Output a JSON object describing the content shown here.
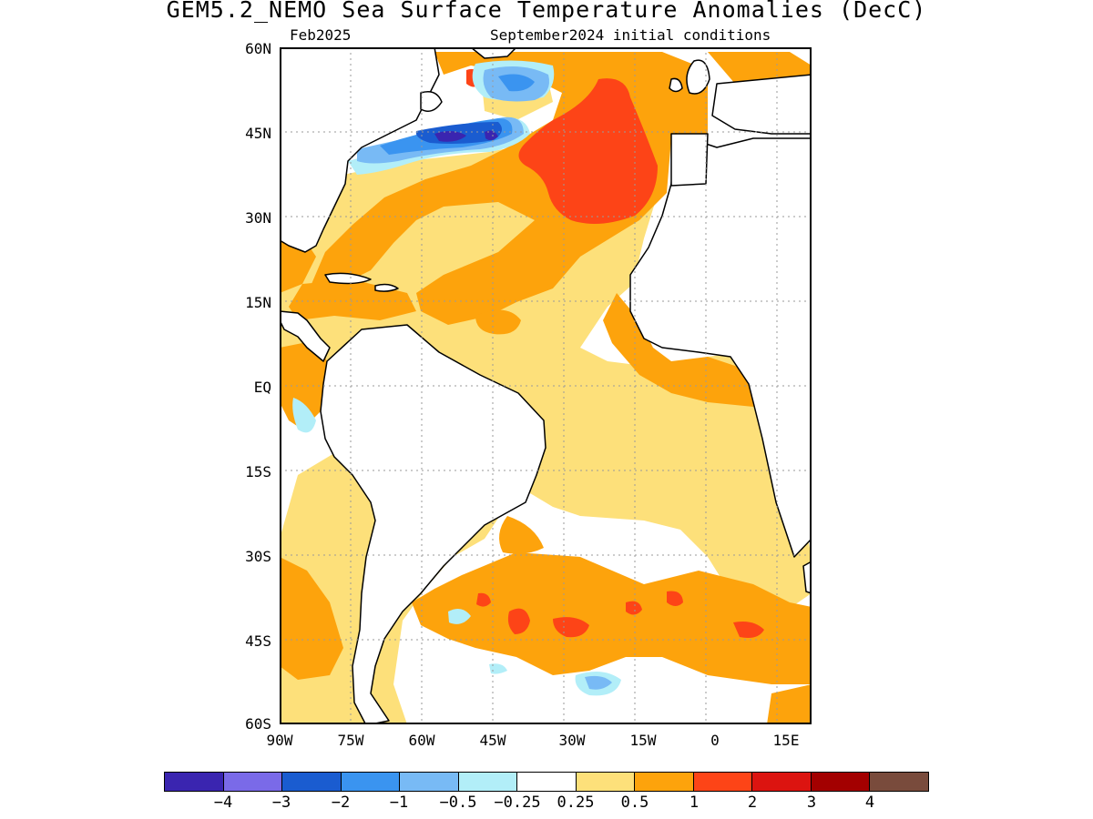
{
  "title": "GEM5.2_NEMO Sea Surface Temperature Anomalies (DecC)",
  "subtitle_left": "Feb2025",
  "subtitle_right": "September2024 initial conditions",
  "lat_labels": [
    "60N",
    "45N",
    "30N",
    "15N",
    "EQ",
    "15S",
    "30S",
    "45S",
    "60S"
  ],
  "lon_labels": [
    "90W",
    "75W",
    "60W",
    "45W",
    "30W",
    "15W",
    "0",
    "15E"
  ],
  "colorbar": {
    "colors": [
      "#3a25b0",
      "#7a6ae8",
      "#1a5cd0",
      "#3a94f0",
      "#78baf5",
      "#b2eef8",
      "#ffffff",
      "#fde07a",
      "#fda30c",
      "#fd4417",
      "#dc1410",
      "#a30000",
      "#794b3c"
    ],
    "labels": [
      "−4",
      "−3",
      "−2",
      "−1",
      "−0.5",
      "−0.25",
      "0.25",
      "0.5",
      "1",
      "2",
      "3",
      "4"
    ]
  }
}
